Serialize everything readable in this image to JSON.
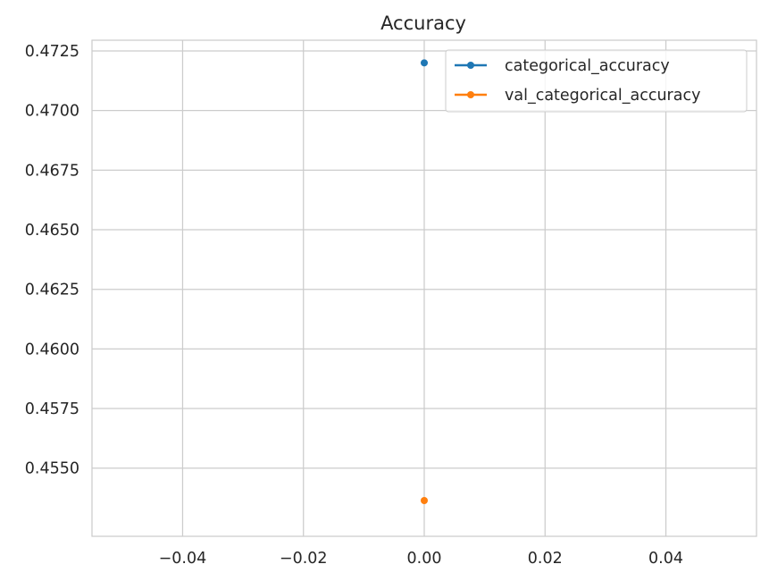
{
  "chart_data": {
    "type": "scatter",
    "title": "Accuracy",
    "xlabel": "",
    "ylabel": "",
    "xlim": [
      -0.055,
      0.055
    ],
    "ylim": [
      0.45214,
      0.47295
    ],
    "grid": true,
    "legend_position": "top-right",
    "xticks": [
      -0.04,
      -0.02,
      0.0,
      0.02,
      0.04
    ],
    "xtick_labels": [
      "−0.04",
      "−0.02",
      "0.00",
      "0.02",
      "0.04"
    ],
    "yticks": [
      0.455,
      0.4575,
      0.46,
      0.4625,
      0.465,
      0.4675,
      0.47,
      0.4725
    ],
    "ytick_labels": [
      "0.4550",
      "0.4575",
      "0.4600",
      "0.4625",
      "0.4650",
      "0.4675",
      "0.4700",
      "0.4725"
    ],
    "series": [
      {
        "name": "categorical_accuracy",
        "color": "#1f77b4",
        "x": [
          0
        ],
        "y": [
          0.472
        ]
      },
      {
        "name": "val_categorical_accuracy",
        "color": "#ff7f0e",
        "x": [
          0
        ],
        "y": [
          0.45364
        ]
      }
    ]
  }
}
